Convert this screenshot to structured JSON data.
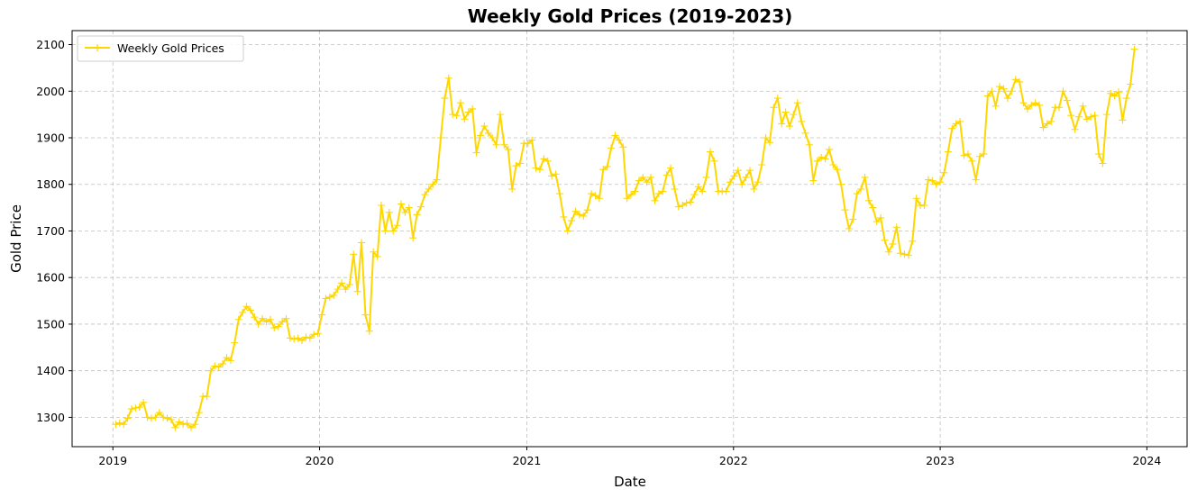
{
  "chart_data": {
    "type": "line",
    "title": "Weekly Gold Prices (2019-2023)",
    "xlabel": "Date",
    "ylabel": "Gold Price",
    "xlim": [
      "2018-10-21",
      "2024-03-12"
    ],
    "ylim": [
      1237,
      2130
    ],
    "grid": true,
    "legend_position": "top-left",
    "x_ticks": [
      "2019",
      "2020",
      "2021",
      "2022",
      "2023",
      "2024"
    ],
    "y_ticks": [
      1300,
      1400,
      1500,
      1600,
      1700,
      1800,
      1900,
      2000,
      2100
    ],
    "color": "#FFD700",
    "marker": "+",
    "start_date": "2019-01-06",
    "interval_days": 7,
    "series": [
      {
        "name": "Weekly Gold Prices",
        "values": [
          1285,
          1288,
          1285,
          1298,
          1318,
          1320,
          1322,
          1332,
          1300,
          1298,
          1300,
          1310,
          1300,
          1298,
          1295,
          1278,
          1290,
          1285,
          1287,
          1278,
          1285,
          1310,
          1345,
          1345,
          1400,
          1410,
          1408,
          1415,
          1428,
          1422,
          1460,
          1510,
          1525,
          1538,
          1530,
          1515,
          1500,
          1512,
          1505,
          1510,
          1492,
          1495,
          1505,
          1512,
          1470,
          1468,
          1470,
          1465,
          1472,
          1470,
          1478,
          1480,
          1520,
          1555,
          1558,
          1562,
          1575,
          1588,
          1575,
          1585,
          1650,
          1570,
          1675,
          1520,
          1485,
          1655,
          1645,
          1755,
          1700,
          1740,
          1700,
          1712,
          1758,
          1740,
          1750,
          1685,
          1735,
          1752,
          1778,
          1790,
          1800,
          1810,
          1900,
          1985,
          2028,
          1950,
          1948,
          1975,
          1940,
          1955,
          1962,
          1868,
          1905,
          1925,
          1910,
          1900,
          1885,
          1950,
          1885,
          1875,
          1790,
          1840,
          1845,
          1888,
          1888,
          1895,
          1835,
          1832,
          1855,
          1850,
          1818,
          1822,
          1780,
          1730,
          1700,
          1722,
          1742,
          1735,
          1732,
          1745,
          1780,
          1776,
          1770,
          1832,
          1838,
          1878,
          1905,
          1895,
          1880,
          1770,
          1778,
          1785,
          1808,
          1815,
          1805,
          1815,
          1765,
          1780,
          1785,
          1820,
          1835,
          1790,
          1752,
          1755,
          1760,
          1762,
          1778,
          1795,
          1785,
          1815,
          1870,
          1850,
          1785,
          1785,
          1785,
          1805,
          1818,
          1830,
          1800,
          1815,
          1830,
          1790,
          1805,
          1842,
          1900,
          1890,
          1965,
          1985,
          1930,
          1955,
          1925,
          1950,
          1975,
          1935,
          1910,
          1885,
          1808,
          1850,
          1858,
          1855,
          1875,
          1842,
          1832,
          1800,
          1745,
          1705,
          1725,
          1780,
          1790,
          1815,
          1765,
          1750,
          1720,
          1728,
          1680,
          1655,
          1672,
          1708,
          1652,
          1650,
          1648,
          1678,
          1770,
          1755,
          1755,
          1810,
          1808,
          1800,
          1805,
          1825,
          1870,
          1920,
          1930,
          1935,
          1862,
          1865,
          1850,
          1810,
          1860,
          1865,
          1990,
          2000,
          1968,
          2010,
          2005,
          1985,
          2000,
          2025,
          2020,
          1975,
          1962,
          1970,
          1975,
          1970,
          1922,
          1930,
          1935,
          1965,
          1965,
          2000,
          1980,
          1948,
          1918,
          1945,
          1968,
          1940,
          1945,
          1948,
          1865,
          1845,
          1950,
          1995,
          1990,
          1998,
          1938,
          1985,
          2015,
          2090
        ]
      }
    ]
  }
}
